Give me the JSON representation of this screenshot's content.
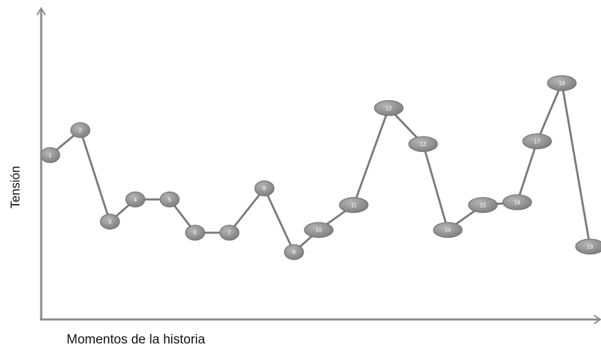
{
  "chart_data": {
    "type": "line",
    "xlabel": "Momentos de la historia",
    "ylabel": "Tensión",
    "points": [
      {
        "label": "1",
        "x": 1,
        "y": 5.4
      },
      {
        "label": "2",
        "x": 2,
        "y": 6.3
      },
      {
        "label": "3",
        "x": 3,
        "y": 3.0
      },
      {
        "label": "4",
        "x": 4,
        "y": 3.8
      },
      {
        "label": "5",
        "x": 5,
        "y": 3.8
      },
      {
        "label": "6",
        "x": 6,
        "y": 2.6
      },
      {
        "label": "7",
        "x": 7,
        "y": 2.6
      },
      {
        "label": "8",
        "x": 8,
        "y": 4.2
      },
      {
        "label": "9",
        "x": 9,
        "y": 1.9
      },
      {
        "label": "10",
        "x": 10,
        "y": 2.7
      },
      {
        "label": "11",
        "x": 11,
        "y": 3.6
      },
      {
        "label": "12",
        "x": 12,
        "y": 7.1
      },
      {
        "label": "13",
        "x": 13,
        "y": 5.8
      },
      {
        "label": "14",
        "x": 14,
        "y": 2.7
      },
      {
        "label": "15",
        "x": 15,
        "y": 3.6
      },
      {
        "label": "16",
        "x": 16,
        "y": 3.7
      },
      {
        "label": "17",
        "x": 17,
        "y": 5.9
      },
      {
        "label": "18",
        "x": 18,
        "y": 8.0
      },
      {
        "label": "19",
        "x": 19,
        "y": 2.1
      }
    ],
    "colors": {
      "line": "#7a7a7a",
      "marker": "#8d8d8d",
      "marker_border": "#6e6e6e",
      "axis": "#8a8a8a",
      "marker_text": "#ffffff"
    }
  }
}
